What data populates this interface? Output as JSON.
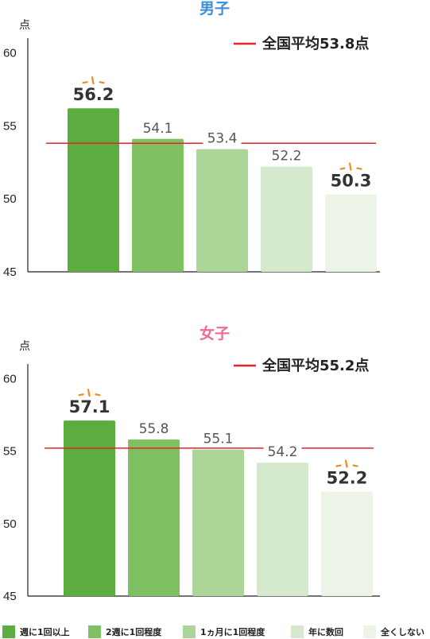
{
  "chart_data": [
    {
      "type": "bar",
      "title": "男子",
      "unit_label": "点",
      "categories": [
        "週に1回以上",
        "2週に1回程度",
        "1ヵ月に1回程度",
        "年に数回",
        "全くしない"
      ],
      "values": [
        56.2,
        54.1,
        53.4,
        52.2,
        50.3
      ],
      "labels": [
        "56.2",
        "54.1",
        "53.4",
        "52.2",
        "50.3"
      ],
      "emphasized": [
        true,
        false,
        false,
        false,
        true
      ],
      "ylim": [
        45,
        61
      ],
      "yticks": [
        45,
        50,
        55,
        60
      ],
      "average": {
        "value": 53.8,
        "label": "全国平均53.8点"
      },
      "colors": {
        "title": "#3a8fd8"
      }
    },
    {
      "type": "bar",
      "title": "女子",
      "unit_label": "点",
      "categories": [
        "週に1回以上",
        "2週に1回程度",
        "1ヵ月に1回程度",
        "年に数回",
        "全くしない"
      ],
      "values": [
        57.1,
        55.8,
        55.1,
        54.2,
        52.2
      ],
      "labels": [
        "57.1",
        "55.8",
        "55.1",
        "54.2",
        "52.2"
      ],
      "emphasized": [
        true,
        false,
        false,
        false,
        true
      ],
      "ylim": [
        45,
        61
      ],
      "yticks": [
        45,
        50,
        55,
        60
      ],
      "average": {
        "value": 55.2,
        "label": "全国平均55.2点"
      },
      "colors": {
        "title": "#f06a93"
      }
    }
  ],
  "legend": {
    "items": [
      {
        "label": "週に1回以上",
        "color": "#5aad3e"
      },
      {
        "label": "2週に1回程度",
        "color": "#7fc063"
      },
      {
        "label": "1ヵ月に1回程度",
        "color": "#acd598"
      },
      {
        "label": "年に数回",
        "color": "#d5eacc"
      },
      {
        "label": "全くしない",
        "color": "#ebf4e6"
      }
    ]
  },
  "colors": {
    "average_line": "#e0262b",
    "burst": "#f08c1e",
    "axis": "#222222"
  }
}
